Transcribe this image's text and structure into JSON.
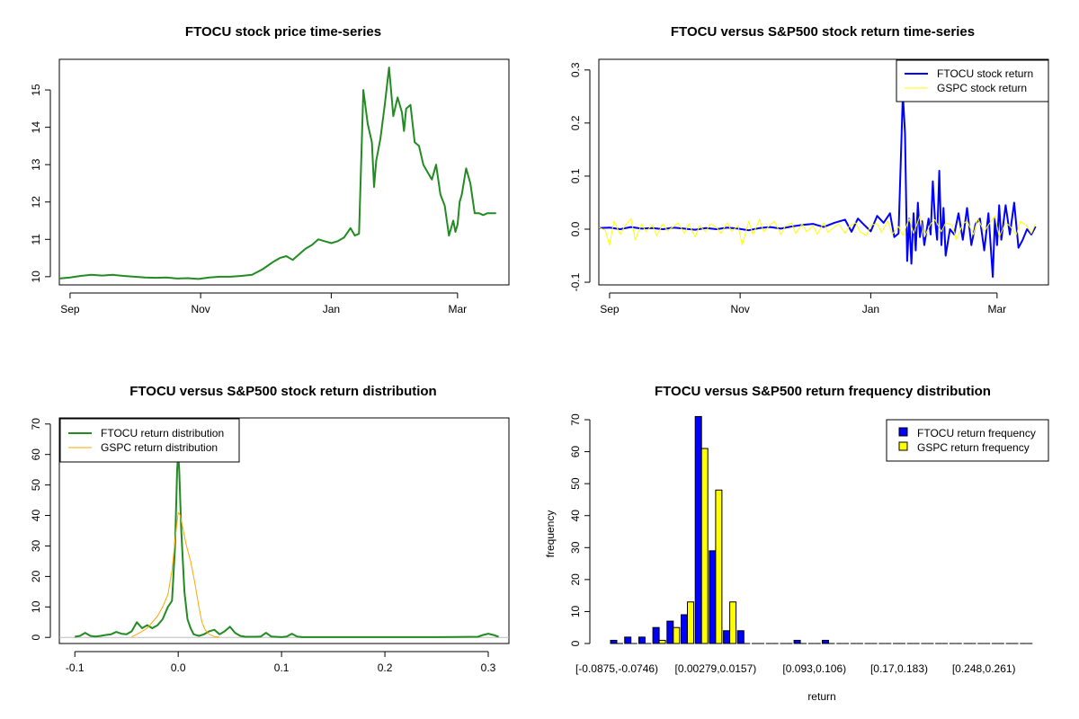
{
  "chart_data": [
    {
      "id": "price",
      "type": "line",
      "title": "FTOCU stock price time-series",
      "xlabel": "",
      "ylabel": "",
      "xlim": [
        0,
        210
      ],
      "ylim": [
        9.78,
        15.82
      ],
      "x_ticks": [
        {
          "value": 5,
          "label": "Sep"
        },
        {
          "value": 66,
          "label": "Nov"
        },
        {
          "value": 127,
          "label": "Jan"
        },
        {
          "value": 186,
          "label": "Mar"
        }
      ],
      "y_ticks": [
        {
          "value": 10,
          "label": "10"
        },
        {
          "value": 11,
          "label": "11"
        },
        {
          "value": 12,
          "label": "12"
        },
        {
          "value": 13,
          "label": "13"
        },
        {
          "value": 14,
          "label": "14"
        },
        {
          "value": 15,
          "label": "15"
        }
      ],
      "series": [
        {
          "name": "FTOCU stock price",
          "color": "#228b22",
          "x": [
            0,
            5,
            10,
            15,
            20,
            25,
            30,
            35,
            40,
            45,
            50,
            55,
            60,
            65,
            70,
            75,
            80,
            85,
            90,
            95,
            100,
            103,
            106,
            109,
            112,
            115,
            118,
            121,
            124,
            127,
            130,
            133,
            136,
            138,
            140,
            142,
            144,
            146,
            147,
            148,
            150,
            152,
            154,
            156,
            158,
            160,
            161,
            162,
            164,
            166,
            168,
            170,
            172,
            174,
            176,
            178,
            180,
            182,
            184,
            185,
            186,
            187,
            188,
            190,
            192,
            194,
            196,
            198,
            200,
            202,
            204
          ],
          "values": [
            9.95,
            9.98,
            10.02,
            10.05,
            10.03,
            10.05,
            10.02,
            10.0,
            9.98,
            9.97,
            9.98,
            9.95,
            9.96,
            9.94,
            9.98,
            10.0,
            10.0,
            10.02,
            10.05,
            10.2,
            10.4,
            10.5,
            10.55,
            10.45,
            10.6,
            10.75,
            10.85,
            11.0,
            10.95,
            10.9,
            10.95,
            11.05,
            11.3,
            11.1,
            11.15,
            15.0,
            14.1,
            13.6,
            12.4,
            13.1,
            13.7,
            14.6,
            15.6,
            14.3,
            14.8,
            14.4,
            13.9,
            14.5,
            14.6,
            13.6,
            13.5,
            13.0,
            12.8,
            12.6,
            13.0,
            12.2,
            11.9,
            11.1,
            11.5,
            11.2,
            11.4,
            12.0,
            12.2,
            12.9,
            12.5,
            11.7,
            11.7,
            11.65,
            11.7,
            11.7,
            11.7
          ]
        }
      ]
    },
    {
      "id": "returns",
      "type": "line",
      "title": "FTOCU versus S&P500 stock return time-series",
      "xlabel": "",
      "ylabel": "",
      "xlim": [
        0,
        210
      ],
      "ylim": [
        -0.105,
        0.32
      ],
      "x_ticks": [
        {
          "value": 5,
          "label": "Sep"
        },
        {
          "value": 66,
          "label": "Nov"
        },
        {
          "value": 127,
          "label": "Jan"
        },
        {
          "value": 186,
          "label": "Mar"
        }
      ],
      "y_ticks": [
        {
          "value": -0.1,
          "label": "-0.1"
        },
        {
          "value": 0.0,
          "label": "0.0"
        },
        {
          "value": 0.1,
          "label": "0.1"
        },
        {
          "value": 0.2,
          "label": "0.2"
        },
        {
          "value": 0.3,
          "label": "0.3"
        }
      ],
      "legend": {
        "position": "top-right",
        "entries": [
          {
            "label": "FTOCU stock return",
            "color": "#0000ff"
          },
          {
            "label": "GSPC stock return",
            "color": "#ffff00"
          }
        ]
      },
      "series": [
        {
          "name": "FTOCU stock return",
          "color": "#0000ff",
          "x": [
            0,
            5,
            10,
            15,
            20,
            25,
            30,
            35,
            40,
            45,
            50,
            55,
            60,
            65,
            70,
            75,
            80,
            85,
            90,
            95,
            100,
            105,
            110,
            115,
            118,
            121,
            124,
            127,
            130,
            133,
            136,
            138,
            140,
            142,
            143,
            144,
            145,
            146,
            147,
            148,
            149,
            150,
            151,
            152,
            154,
            155,
            156,
            157,
            158,
            159,
            160,
            161,
            162,
            164,
            166,
            168,
            170,
            172,
            174,
            176,
            178,
            180,
            182,
            184,
            185,
            186,
            187,
            188,
            190,
            192,
            194,
            196,
            198,
            200,
            202,
            204
          ],
          "values": [
            0.002,
            0.003,
            0.0,
            0.004,
            0.001,
            0.002,
            0.0,
            0.003,
            0.001,
            -0.001,
            0.002,
            0.0,
            0.003,
            0.001,
            -0.002,
            0.002,
            0.004,
            0.001,
            0.005,
            0.008,
            0.01,
            0.004,
            0.012,
            0.018,
            -0.005,
            0.02,
            0.008,
            -0.004,
            0.025,
            0.012,
            0.03,
            -0.015,
            -0.008,
            0.255,
            0.18,
            -0.06,
            0.02,
            -0.065,
            0.03,
            -0.04,
            0.05,
            -0.015,
            0.015,
            -0.03,
            0.02,
            -0.01,
            0.09,
            0.02,
            -0.02,
            0.11,
            -0.03,
            0.04,
            -0.05,
            0.0,
            -0.01,
            0.03,
            -0.02,
            0.04,
            -0.03,
            0.01,
            0.02,
            -0.04,
            0.03,
            -0.09,
            0.02,
            -0.03,
            0.045,
            -0.02,
            0.045,
            -0.01,
            0.05,
            -0.035,
            -0.02,
            0.0,
            -0.01,
            0.005
          ]
        },
        {
          "name": "GSPC stock return",
          "color": "#ffff00",
          "x": [
            0,
            3,
            5,
            7,
            10,
            12,
            15,
            17,
            20,
            22,
            25,
            27,
            30,
            32,
            35,
            37,
            40,
            42,
            45,
            47,
            50,
            52,
            55,
            57,
            60,
            62,
            65,
            67,
            70,
            72,
            75,
            77,
            80,
            82,
            85,
            87,
            90,
            92,
            95,
            97,
            100,
            102,
            105,
            107,
            110,
            112,
            115,
            117,
            120,
            122,
            125,
            127,
            130,
            132,
            135,
            137,
            140,
            142,
            145,
            147,
            150,
            152,
            155,
            157,
            160,
            162,
            165,
            167,
            170,
            172,
            175,
            177,
            180,
            182,
            185,
            187,
            190,
            192,
            195,
            197,
            200,
            202,
            204
          ],
          "values": [
            0.003,
            -0.002,
            -0.03,
            0.015,
            -0.01,
            0.005,
            0.02,
            -0.02,
            0.01,
            -0.005,
            0.008,
            -0.012,
            0.01,
            -0.003,
            0.005,
            0.012,
            -0.008,
            0.01,
            -0.015,
            0.006,
            -0.005,
            0.01,
            0.003,
            -0.008,
            0.012,
            -0.004,
            0.006,
            -0.03,
            0.015,
            -0.01,
            0.018,
            -0.005,
            0.008,
            0.015,
            -0.01,
            0.005,
            0.012,
            -0.008,
            0.01,
            -0.005,
            0.007,
            -0.01,
            0.012,
            -0.006,
            0.004,
            0.01,
            -0.008,
            0.006,
            0.012,
            -0.005,
            -0.012,
            0.008,
            0.01,
            -0.006,
            0.015,
            -0.01,
            0.005,
            -0.012,
            0.02,
            -0.008,
            0.025,
            -0.015,
            0.01,
            0.018,
            -0.005,
            0.012,
            0.008,
            -0.02,
            0.01,
            0.015,
            -0.01,
            0.02,
            -0.005,
            0.008,
            0.025,
            -0.015,
            0.012,
            0.006,
            -0.01,
            0.015,
            0.005,
            -0.008,
            0.01
          ]
        }
      ]
    },
    {
      "id": "density",
      "type": "line",
      "title": "FTOCU versus S&P500 stock return distribution",
      "xlabel": "",
      "ylabel": "",
      "xlim": [
        -0.115,
        0.32
      ],
      "ylim": [
        -2,
        72
      ],
      "x_ticks": [
        {
          "value": -0.1,
          "label": "-0.1"
        },
        {
          "value": 0.0,
          "label": "0.0"
        },
        {
          "value": 0.1,
          "label": "0.1"
        },
        {
          "value": 0.2,
          "label": "0.2"
        },
        {
          "value": 0.3,
          "label": "0.3"
        }
      ],
      "y_ticks": [
        {
          "value": 0,
          "label": "0"
        },
        {
          "value": 10,
          "label": "10"
        },
        {
          "value": 20,
          "label": "20"
        },
        {
          "value": 30,
          "label": "30"
        },
        {
          "value": 40,
          "label": "40"
        },
        {
          "value": 50,
          "label": "50"
        },
        {
          "value": 60,
          "label": "60"
        },
        {
          "value": 70,
          "label": "70"
        }
      ],
      "legend": {
        "position": "top-left",
        "entries": [
          {
            "label": "FTOCU return distribution",
            "color": "#228b22"
          },
          {
            "label": "GSPC return distribution",
            "color": "#ffa500"
          }
        ]
      },
      "series": [
        {
          "name": "FTOCU return distribution",
          "color": "#228b22",
          "x": [
            -0.1,
            -0.095,
            -0.09,
            -0.085,
            -0.08,
            -0.075,
            -0.07,
            -0.065,
            -0.06,
            -0.055,
            -0.05,
            -0.045,
            -0.04,
            -0.035,
            -0.03,
            -0.025,
            -0.02,
            -0.015,
            -0.01,
            -0.006,
            -0.003,
            -0.001,
            0.0,
            0.001,
            0.003,
            0.006,
            0.009,
            0.012,
            0.015,
            0.02,
            0.025,
            0.03,
            0.035,
            0.04,
            0.045,
            0.05,
            0.055,
            0.06,
            0.065,
            0.075,
            0.08,
            0.085,
            0.09,
            0.1,
            0.105,
            0.11,
            0.115,
            0.12,
            0.15,
            0.2,
            0.25,
            0.29,
            0.295,
            0.3,
            0.305,
            0.31
          ],
          "values": [
            0.2,
            0.5,
            1.5,
            0.5,
            0.3,
            0.5,
            0.8,
            1.0,
            1.8,
            1.2,
            1.0,
            2.0,
            5.0,
            3.0,
            4.0,
            3.0,
            4.0,
            6.0,
            10.0,
            12.0,
            30.0,
            55.0,
            60.0,
            55.0,
            35.0,
            15.0,
            6.0,
            3.0,
            1.0,
            0.5,
            1.0,
            2.0,
            2.5,
            1.0,
            2.0,
            3.5,
            1.5,
            0.5,
            0.2,
            0.2,
            0.3,
            1.5,
            0.3,
            0.1,
            0.3,
            1.2,
            0.3,
            0.1,
            0.1,
            0.1,
            0.1,
            0.2,
            0.8,
            1.2,
            0.8,
            0.2
          ]
        },
        {
          "name": "GSPC return distribution",
          "color": "#ffa500",
          "x": [
            -0.045,
            -0.04,
            -0.035,
            -0.03,
            -0.025,
            -0.02,
            -0.015,
            -0.01,
            -0.006,
            -0.003,
            -0.001,
            0.0,
            0.002,
            0.005,
            0.008,
            0.012,
            0.016,
            0.02,
            0.023,
            0.026,
            0.03,
            0.035,
            0.04
          ],
          "values": [
            0.2,
            1.0,
            2.0,
            3.0,
            5.0,
            7.0,
            10.0,
            14.0,
            22.0,
            32.0,
            38.0,
            41.0,
            40.0,
            35.0,
            30.0,
            25.0,
            18.0,
            10.0,
            5.0,
            2.5,
            1.0,
            0.3,
            0.1
          ]
        }
      ]
    },
    {
      "id": "frequency",
      "type": "bar",
      "title": "FTOCU versus S&P500 return frequency distribution",
      "xlabel": "return",
      "ylabel": "frequency",
      "ylim": [
        0,
        70
      ],
      "y_ticks": [
        {
          "value": 0,
          "label": "0"
        },
        {
          "value": 10,
          "label": "10"
        },
        {
          "value": 20,
          "label": "20"
        },
        {
          "value": 30,
          "label": "30"
        },
        {
          "value": 40,
          "label": "40"
        },
        {
          "value": 50,
          "label": "50"
        },
        {
          "value": 60,
          "label": "60"
        },
        {
          "value": 70,
          "label": "70"
        }
      ],
      "category_labels": [
        {
          "index": 0,
          "label": "[-0.0875,-0.0746)"
        },
        {
          "index": 7,
          "label": "[0.00279,0.0157)"
        },
        {
          "index": 14,
          "label": "[0.093,0.106)"
        },
        {
          "index": 20,
          "label": "[0.17,0.183)"
        },
        {
          "index": 26,
          "label": "[0.248,0.261)"
        }
      ],
      "num_categories": 30,
      "legend": {
        "position": "top-right",
        "entries": [
          {
            "label": "FTOCU return frequency",
            "color": "#0000ff"
          },
          {
            "label": "GSPC return frequency",
            "color": "#ffff00"
          }
        ]
      },
      "series": [
        {
          "name": "FTOCU return frequency",
          "color": "#0000ff",
          "values": [
            1,
            2,
            2,
            5,
            7,
            9,
            71,
            29,
            4,
            4,
            0,
            0,
            0,
            1,
            0,
            1,
            0,
            0,
            0,
            0,
            0,
            0,
            0,
            0,
            0,
            0,
            0,
            0,
            0,
            0
          ]
        },
        {
          "name": "GSPC return frequency",
          "color": "#ffff00",
          "values": [
            0,
            0,
            0,
            1,
            5,
            13,
            61,
            48,
            13,
            0,
            0,
            0,
            0,
            0,
            0,
            0,
            0,
            0,
            0,
            0,
            0,
            0,
            0,
            0,
            0,
            0,
            0,
            0,
            0,
            0
          ]
        }
      ]
    }
  ]
}
